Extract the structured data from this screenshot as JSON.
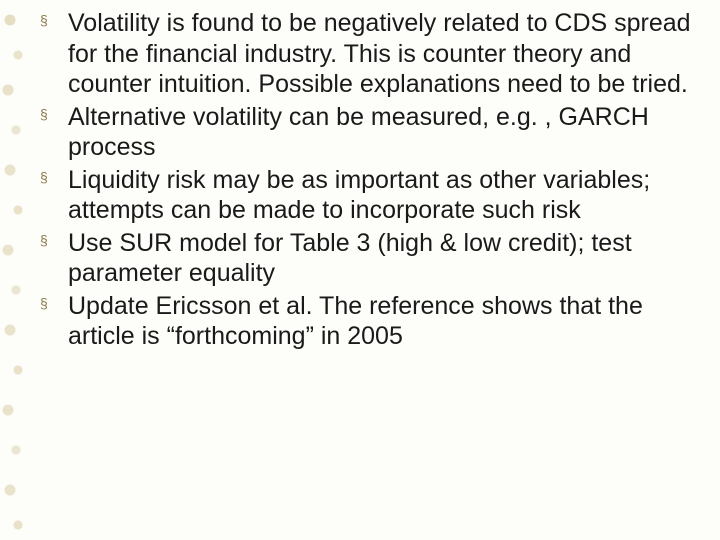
{
  "slide": {
    "background_color": "#fdfdfa",
    "text_color": "#1a1a1a",
    "bullet_marker_color": "#8a7a4a",
    "font_family": "Arial",
    "body_fontsize_pt": 19,
    "bullets": [
      "Volatility is found to be negatively related to CDS spread for the financial industry.  This is counter theory and counter intuition.  Possible explanations need to be tried.",
      "Alternative volatility can be measured, e.g. , GARCH process",
      "Liquidity risk may be as important as other variables; attempts can be made to incorporate such risk",
      "Use SUR model for Table 3 (high & low credit); test parameter equality",
      "Update Ericsson et al.  The reference shows that the article is “forthcoming” in 2005"
    ]
  }
}
